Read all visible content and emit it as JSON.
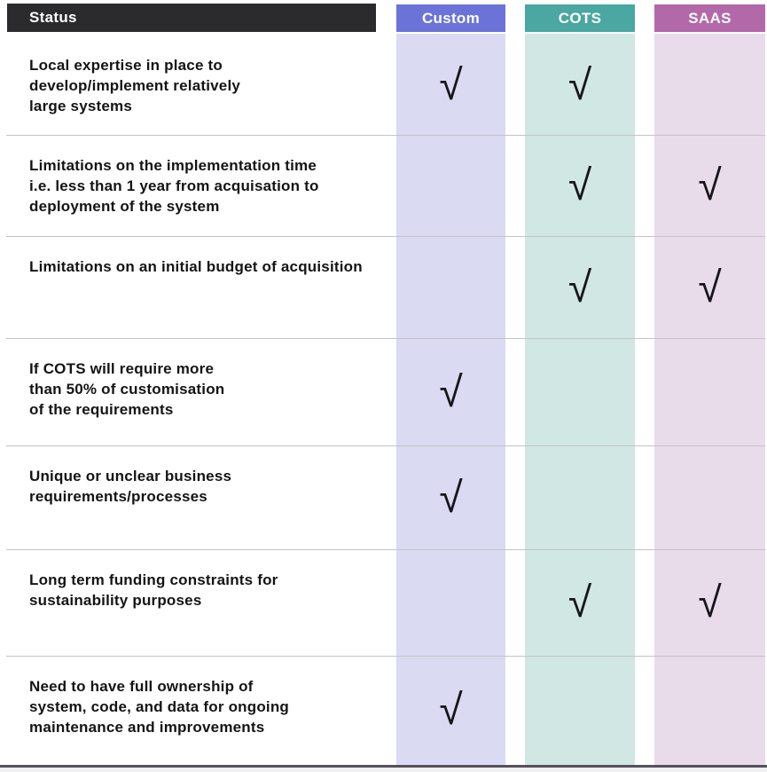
{
  "table": {
    "status_header": "Status",
    "check_glyph": "√",
    "columns": [
      {
        "id": "custom",
        "label": "Custom",
        "header_color": "#6b73d8",
        "band_color": "#dadaf2"
      },
      {
        "id": "cots",
        "label": "COTS",
        "header_color": "#4aa7a1",
        "band_color": "#d0e7e3"
      },
      {
        "id": "saas",
        "label": "SAAS",
        "header_color": "#b368aa",
        "band_color": "#e8dcea"
      }
    ],
    "rows": [
      {
        "text": "Local expertise in place to\ndevelop/implement relatively\nlarge systems",
        "checks": [
          true,
          true,
          false
        ]
      },
      {
        "text": "Limitations on the implementation time\ni.e. less than 1 year from acquisation to\ndeployment of the system",
        "checks": [
          false,
          true,
          true
        ]
      },
      {
        "text": "Limitations on an initial budget of acquisition",
        "checks": [
          false,
          true,
          true
        ]
      },
      {
        "text": "If COTS will require more\nthan 50% of customisation\nof the requirements",
        "checks": [
          true,
          false,
          false
        ]
      },
      {
        "text": "Unique or unclear business\nrequirements/processes",
        "checks": [
          true,
          false,
          false
        ]
      },
      {
        "text": "Long term funding constraints for\nsustainability purposes",
        "checks": [
          false,
          true,
          true
        ]
      },
      {
        "text": "Need to have full ownership of\nsystem, code, and data for ongoing\nmaintenance and improvements",
        "checks": [
          true,
          false,
          false
        ]
      }
    ]
  },
  "colors": {
    "status_header_bg": "#2b2b2e",
    "header_text": "#ffffff",
    "body_text": "#141414",
    "divider": "#c5c2c6",
    "bottom_edge": "#56525c",
    "bottom_strip": "#efeef0"
  }
}
